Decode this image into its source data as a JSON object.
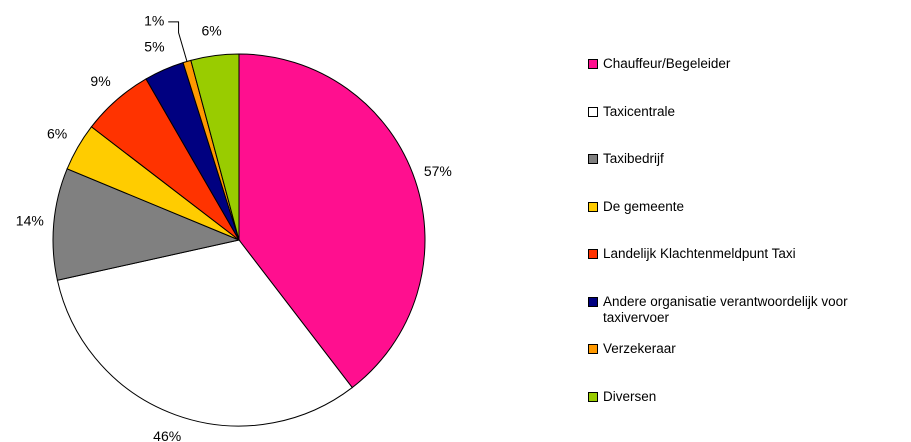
{
  "chart_data": {
    "type": "pie",
    "categories": [
      "Chauffeur/Begeleider",
      "Taxicentrale",
      "Taxibedrijf",
      "De gemeente",
      "Landelijk Klachtenmeldpunt Taxi",
      "Andere organisatie verantwoordelijk voor taxivervoer",
      "Verzekeraar",
      "Diversen"
    ],
    "values": [
      57,
      46,
      14,
      6,
      9,
      5,
      1,
      6
    ],
    "value_labels": [
      "57%",
      "46%",
      "14%",
      "6%",
      "9%",
      "5%",
      "1%",
      "6%"
    ],
    "colors": [
      "#ff0f8f",
      "#ffffff",
      "#808080",
      "#ffcc00",
      "#ff3300",
      "#000080",
      "#ff9900",
      "#99cc00"
    ],
    "legend": "right"
  }
}
